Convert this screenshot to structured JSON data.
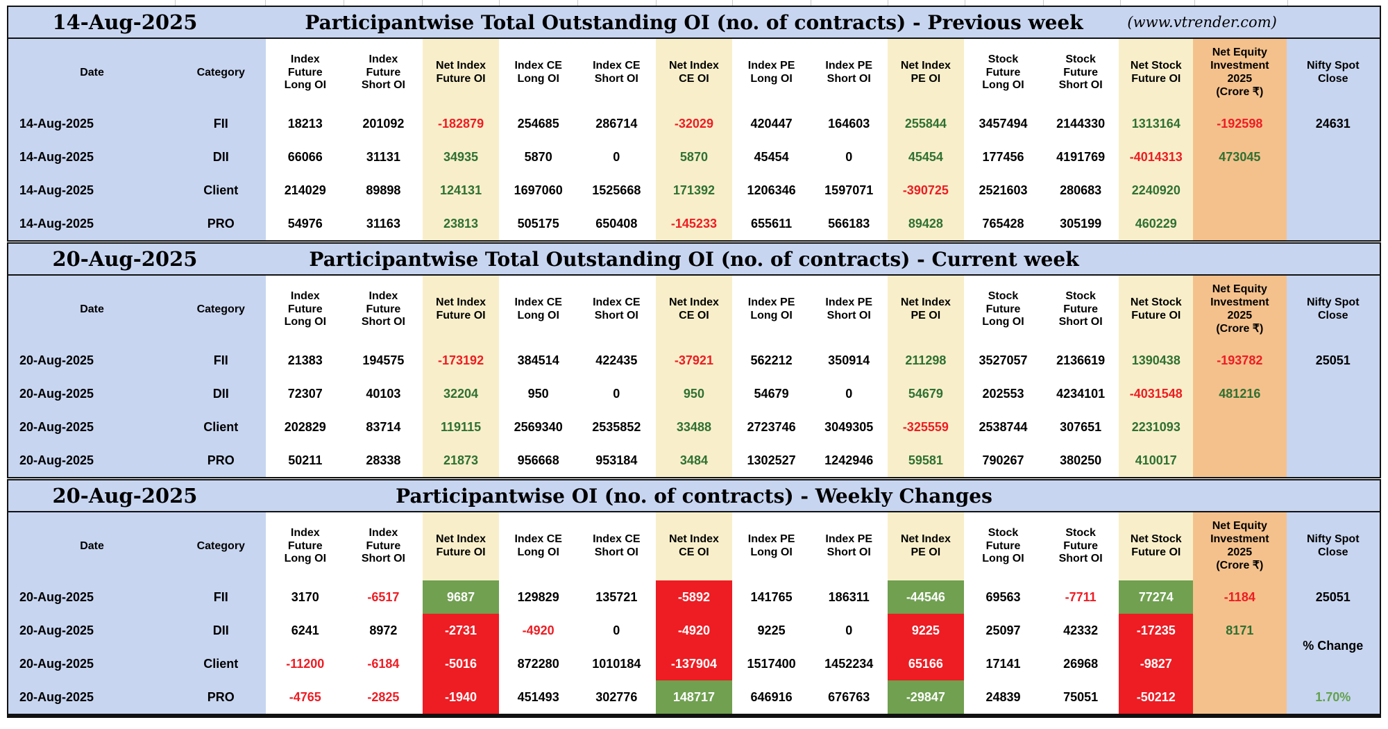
{
  "columns": [
    {
      "key": "date",
      "label": "Date"
    },
    {
      "key": "category",
      "label": "Category"
    },
    {
      "key": "index-future-long-oi",
      "label": "Index\nFuture\nLong OI"
    },
    {
      "key": "index-future-short-oi",
      "label": "Index\nFuture\nShort OI"
    },
    {
      "key": "net-index-future-oi",
      "label": "Net Index\nFuture OI"
    },
    {
      "key": "index-ce-long-oi",
      "label": "Index CE\nLong OI"
    },
    {
      "key": "index-ce-short-oi",
      "label": "Index CE\nShort OI"
    },
    {
      "key": "net-index-ce-oi",
      "label": "Net Index\nCE OI"
    },
    {
      "key": "index-pe-long-oi",
      "label": "Index PE\nLong OI"
    },
    {
      "key": "index-pe-short-oi",
      "label": "Index PE\nShort OI"
    },
    {
      "key": "net-index-pe-oi",
      "label": "Net Index\nPE OI"
    },
    {
      "key": "stock-future-long-oi",
      "label": "Stock\nFuture\nLong OI"
    },
    {
      "key": "stock-future-short-oi",
      "label": "Stock\nFuture\nShort OI"
    },
    {
      "key": "net-stock-future-oi",
      "label": "Net Stock\nFuture OI"
    },
    {
      "key": "net-equity-investment",
      "label": "Net Equity\nInvestment\n2025\n(Crore ₹)"
    },
    {
      "key": "nifty-spot-close",
      "label": "Nifty Spot\nClose"
    }
  ],
  "sections": [
    {
      "id": "previous-week",
      "title_date": "14-Aug-2025",
      "title": "Participantwise Total Outstanding OI (no. of contracts) - Previous week",
      "title_note": "(www.vtrender.com)",
      "rows": [
        {
          "date": "14-Aug-2025",
          "category": "FII",
          "cells": [
            [
              "18213",
              ""
            ],
            [
              "201092",
              ""
            ],
            [
              "-182879",
              "r"
            ],
            [
              "254685",
              ""
            ],
            [
              "286714",
              ""
            ],
            [
              "-32029",
              "r"
            ],
            [
              "420447",
              ""
            ],
            [
              "164603",
              ""
            ],
            [
              "255844",
              "g"
            ],
            [
              "3457494",
              ""
            ],
            [
              "2144330",
              ""
            ],
            [
              "1313164",
              "g"
            ],
            [
              "-192598",
              "r"
            ],
            [
              "24631",
              ""
            ]
          ]
        },
        {
          "date": "14-Aug-2025",
          "category": "DII",
          "cells": [
            [
              "66066",
              ""
            ],
            [
              "31131",
              ""
            ],
            [
              "34935",
              "g"
            ],
            [
              "5870",
              ""
            ],
            [
              "0",
              ""
            ],
            [
              "5870",
              "g"
            ],
            [
              "45454",
              ""
            ],
            [
              "0",
              ""
            ],
            [
              "45454",
              "g"
            ],
            [
              "177456",
              ""
            ],
            [
              "4191769",
              ""
            ],
            [
              "-4014313",
              "r"
            ],
            [
              "473045",
              "g"
            ],
            [
              "",
              ""
            ]
          ]
        },
        {
          "date": "14-Aug-2025",
          "category": "Client",
          "cells": [
            [
              "214029",
              ""
            ],
            [
              "89898",
              ""
            ],
            [
              "124131",
              "g"
            ],
            [
              "1697060",
              ""
            ],
            [
              "1525668",
              ""
            ],
            [
              "171392",
              "g"
            ],
            [
              "1206346",
              ""
            ],
            [
              "1597071",
              ""
            ],
            [
              "-390725",
              "r"
            ],
            [
              "2521603",
              ""
            ],
            [
              "280683",
              ""
            ],
            [
              "2240920",
              "g"
            ],
            [
              "",
              ""
            ],
            [
              "",
              ""
            ]
          ]
        },
        {
          "date": "14-Aug-2025",
          "category": "PRO",
          "cells": [
            [
              "54976",
              ""
            ],
            [
              "31163",
              ""
            ],
            [
              "23813",
              "g"
            ],
            [
              "505175",
              ""
            ],
            [
              "650408",
              ""
            ],
            [
              "-145233",
              "r"
            ],
            [
              "655611",
              ""
            ],
            [
              "566183",
              ""
            ],
            [
              "89428",
              "g"
            ],
            [
              "765428",
              ""
            ],
            [
              "305199",
              ""
            ],
            [
              "460229",
              "g"
            ],
            [
              "",
              ""
            ],
            [
              "",
              ""
            ]
          ]
        }
      ]
    },
    {
      "id": "current-week",
      "title_date": "20-Aug-2025",
      "title": "Participantwise Total Outstanding OI (no. of contracts) - Current week",
      "rows": [
        {
          "date": "20-Aug-2025",
          "category": "FII",
          "cells": [
            [
              "21383",
              ""
            ],
            [
              "194575",
              ""
            ],
            [
              "-173192",
              "r"
            ],
            [
              "384514",
              ""
            ],
            [
              "422435",
              ""
            ],
            [
              "-37921",
              "r"
            ],
            [
              "562212",
              ""
            ],
            [
              "350914",
              ""
            ],
            [
              "211298",
              "g"
            ],
            [
              "3527057",
              ""
            ],
            [
              "2136619",
              ""
            ],
            [
              "1390438",
              "g"
            ],
            [
              "-193782",
              "r"
            ],
            [
              "25051",
              ""
            ]
          ]
        },
        {
          "date": "20-Aug-2025",
          "category": "DII",
          "cells": [
            [
              "72307",
              ""
            ],
            [
              "40103",
              ""
            ],
            [
              "32204",
              "g"
            ],
            [
              "950",
              ""
            ],
            [
              "0",
              ""
            ],
            [
              "950",
              "g"
            ],
            [
              "54679",
              ""
            ],
            [
              "0",
              ""
            ],
            [
              "54679",
              "g"
            ],
            [
              "202553",
              ""
            ],
            [
              "4234101",
              ""
            ],
            [
              "-4031548",
              "r"
            ],
            [
              "481216",
              "g"
            ],
            [
              "",
              ""
            ]
          ]
        },
        {
          "date": "20-Aug-2025",
          "category": "Client",
          "cells": [
            [
              "202829",
              ""
            ],
            [
              "83714",
              ""
            ],
            [
              "119115",
              "g"
            ],
            [
              "2569340",
              ""
            ],
            [
              "2535852",
              ""
            ],
            [
              "33488",
              "g"
            ],
            [
              "2723746",
              ""
            ],
            [
              "3049305",
              ""
            ],
            [
              "-325559",
              "r"
            ],
            [
              "2538744",
              ""
            ],
            [
              "307651",
              ""
            ],
            [
              "2231093",
              "g"
            ],
            [
              "",
              ""
            ],
            [
              "",
              ""
            ]
          ]
        },
        {
          "date": "20-Aug-2025",
          "category": "PRO",
          "cells": [
            [
              "50211",
              ""
            ],
            [
              "28338",
              ""
            ],
            [
              "21873",
              "g"
            ],
            [
              "956668",
              ""
            ],
            [
              "953184",
              ""
            ],
            [
              "3484",
              "g"
            ],
            [
              "1302527",
              ""
            ],
            [
              "1242946",
              ""
            ],
            [
              "59581",
              "g"
            ],
            [
              "790267",
              ""
            ],
            [
              "380250",
              ""
            ],
            [
              "410017",
              "g"
            ],
            [
              "",
              ""
            ],
            [
              "",
              ""
            ]
          ]
        }
      ]
    },
    {
      "id": "weekly-changes",
      "title_date": "20-Aug-2025",
      "title": "Participantwise OI (no. of contracts) - Weekly Changes",
      "rows": [
        {
          "date": "20-Aug-2025",
          "category": "FII",
          "cells": [
            [
              "3170",
              ""
            ],
            [
              "-6517",
              "r"
            ],
            [
              "9687",
              "G"
            ],
            [
              "129829",
              ""
            ],
            [
              "135721",
              ""
            ],
            [
              "-5892",
              "R"
            ],
            [
              "141765",
              ""
            ],
            [
              "186311",
              ""
            ],
            [
              "-44546",
              "G"
            ],
            [
              "69563",
              ""
            ],
            [
              "-7711",
              "r"
            ],
            [
              "77274",
              "G"
            ],
            [
              "-1184",
              "r"
            ],
            [
              "25051",
              ""
            ]
          ]
        },
        {
          "date": "20-Aug-2025",
          "category": "DII",
          "cells": [
            [
              "6241",
              ""
            ],
            [
              "8972",
              ""
            ],
            [
              "-2731",
              "R"
            ],
            [
              "-4920",
              "r"
            ],
            [
              "0",
              ""
            ],
            [
              "-4920",
              "R"
            ],
            [
              "9225",
              ""
            ],
            [
              "0",
              ""
            ],
            [
              "9225",
              "R"
            ],
            [
              "25097",
              ""
            ],
            [
              "42332",
              ""
            ],
            [
              "-17235",
              "R"
            ],
            [
              "8171",
              "g"
            ],
            [
              "",
              ""
            ]
          ]
        },
        {
          "date": "20-Aug-2025",
          "category": "Client",
          "cells": [
            [
              "-11200",
              "r"
            ],
            [
              "-6184",
              "r"
            ],
            [
              "-5016",
              "R"
            ],
            [
              "872280",
              ""
            ],
            [
              "1010184",
              ""
            ],
            [
              "-137904",
              "R"
            ],
            [
              "1517400",
              ""
            ],
            [
              "1452234",
              ""
            ],
            [
              "65166",
              "R"
            ],
            [
              "17141",
              ""
            ],
            [
              "26968",
              ""
            ],
            [
              "-9827",
              "R"
            ],
            [
              "",
              ""
            ],
            [
              "% Change",
              "ku"
            ]
          ]
        },
        {
          "date": "20-Aug-2025",
          "category": "PRO",
          "cells": [
            [
              "-4765",
              "r"
            ],
            [
              "-2825",
              "r"
            ],
            [
              "-1940",
              "R"
            ],
            [
              "451493",
              ""
            ],
            [
              "302776",
              ""
            ],
            [
              "148717",
              "G"
            ],
            [
              "646916",
              ""
            ],
            [
              "676763",
              ""
            ],
            [
              "-29847",
              "G"
            ],
            [
              "24839",
              ""
            ],
            [
              "75051",
              ""
            ],
            [
              "-50212",
              "R"
            ],
            [
              "",
              ""
            ],
            [
              "1.70%",
              "gl"
            ]
          ]
        }
      ]
    }
  ],
  "colors": {
    "header_blue": "#c7d5f0",
    "net_col_cream": "#f8efca",
    "equity_col_orange": "#f4c18c",
    "positive_green": "#2f7031",
    "negative_red": "#ee1c23",
    "gain_cell_green_bg": "#70a050",
    "loss_cell_red_bg": "#ee1c23",
    "percent_change_green": "#62a14c",
    "border_black": "#111111",
    "cell_white": "#ffffff"
  }
}
